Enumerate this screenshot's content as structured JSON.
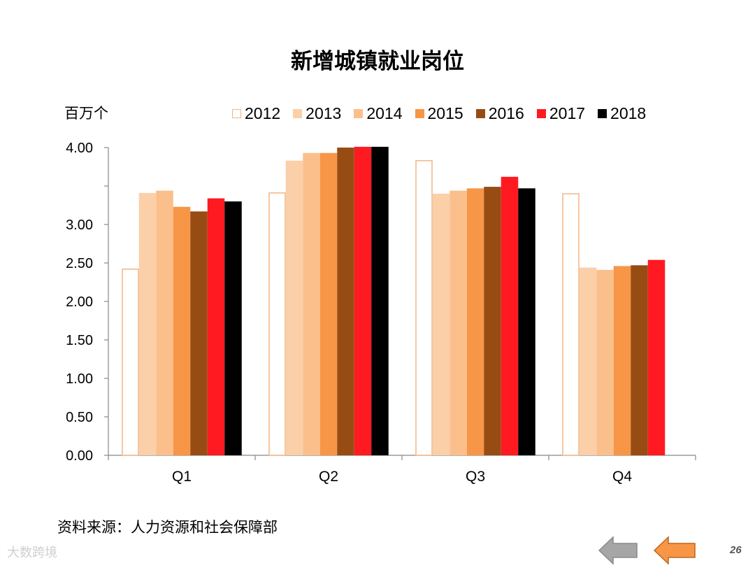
{
  "title": "新增城镇就业岗位",
  "unit_label": "百万个",
  "source": "资料来源：人力资源和社会保障部",
  "watermark": "大数跨境",
  "page_number": "26",
  "nav": {
    "back": "back-arrow",
    "forward": "forward-arrow"
  },
  "colors": {
    "2012": "#ffffff",
    "2013": "#fbcfa8",
    "2014": "#fbbf8c",
    "2015": "#f79646",
    "2016": "#974c13",
    "2017": "#ff1a22",
    "2018": "#000000",
    "outline_2012": "#f0b586",
    "back_arrow": "#a6a6a6",
    "forward_arrow": "#f79646"
  },
  "chart_data": {
    "type": "bar",
    "categories": [
      "Q1",
      "Q2",
      "Q3",
      "Q4"
    ],
    "yticks": [
      "0.00",
      "0.50",
      "1.00",
      "1.50",
      "2.00",
      "2.50",
      "3.00",
      "4.00"
    ],
    "ylim": [
      0,
      4
    ],
    "legend_position": "top",
    "series": [
      {
        "name": "2012",
        "values": [
          2.42,
          3.41,
          3.83,
          3.4
        ]
      },
      {
        "name": "2013",
        "values": [
          3.41,
          3.83,
          3.4,
          2.44
        ]
      },
      {
        "name": "2014",
        "values": [
          3.44,
          3.93,
          3.44,
          2.41
        ]
      },
      {
        "name": "2015",
        "values": [
          3.23,
          3.93,
          3.47,
          2.46
        ]
      },
      {
        "name": "2016",
        "values": [
          3.17,
          4.0,
          3.49,
          2.47
        ]
      },
      {
        "name": "2017",
        "values": [
          3.34,
          4.01,
          3.62,
          2.54
        ]
      },
      {
        "name": "2018",
        "values": [
          3.3,
          4.01,
          3.47,
          null
        ]
      }
    ]
  }
}
